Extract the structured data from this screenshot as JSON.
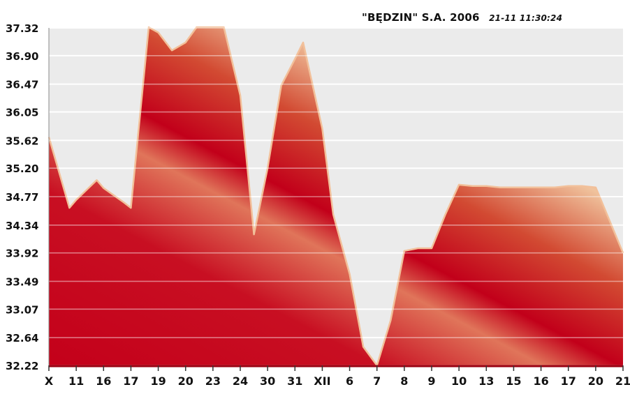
{
  "header": {
    "source": "\"BĘDZIN\" S.A. 2006",
    "timestamp": "21-11 11:30:24"
  },
  "colors": {
    "plot_background": "#ebebeb",
    "area_dark": "#c4001a",
    "area_light": "#f2c09a",
    "grid": "#ffffff",
    "axis": "#9a0010"
  },
  "chart_data": {
    "type": "area",
    "title": "",
    "xlabel": "",
    "ylabel": "",
    "grid": true,
    "legend": "none",
    "y_ticks": [
      "37.32",
      "36.90",
      "36.47",
      "36.05",
      "35.62",
      "35.20",
      "34.77",
      "34.34",
      "33.92",
      "33.49",
      "33.07",
      "32.64",
      "32.22"
    ],
    "ylim": [
      32.22,
      37.32
    ],
    "x_tick_labels": [
      "X",
      "11",
      "16",
      "17",
      "19",
      "20",
      "23",
      "24",
      "30",
      "31",
      "XII",
      "6",
      "7",
      "8",
      "9",
      "10",
      "13",
      "15",
      "16",
      "17",
      "20",
      "21"
    ],
    "x": [
      0,
      0.75,
      1.0,
      1.75,
      2.0,
      2.75,
      3.0,
      3.65,
      4.0,
      4.5,
      5.0,
      5.4,
      6.0,
      6.4,
      7.0,
      7.5,
      8.0,
      8.5,
      9.0,
      9.3,
      10.0,
      10.4,
      11.0,
      11.5,
      12.0,
      12.5,
      13.0,
      13.5,
      14.0,
      14.5,
      15.0,
      15.5,
      16.0,
      16.5,
      17.0,
      17.5,
      18.0,
      18.5,
      19.0,
      19.5,
      20.0,
      21.0
    ],
    "values": [
      35.67,
      34.6,
      34.72,
      35.02,
      34.9,
      34.68,
      34.6,
      37.33,
      37.25,
      36.98,
      37.1,
      37.33,
      37.33,
      37.33,
      36.3,
      34.2,
      35.2,
      36.45,
      36.85,
      37.1,
      35.8,
      34.5,
      33.6,
      32.5,
      32.22,
      32.9,
      33.95,
      33.99,
      33.99,
      34.5,
      34.95,
      34.93,
      34.93,
      34.91,
      34.91,
      34.91,
      34.91,
      34.91,
      34.93,
      34.93,
      34.91,
      33.92
    ]
  }
}
